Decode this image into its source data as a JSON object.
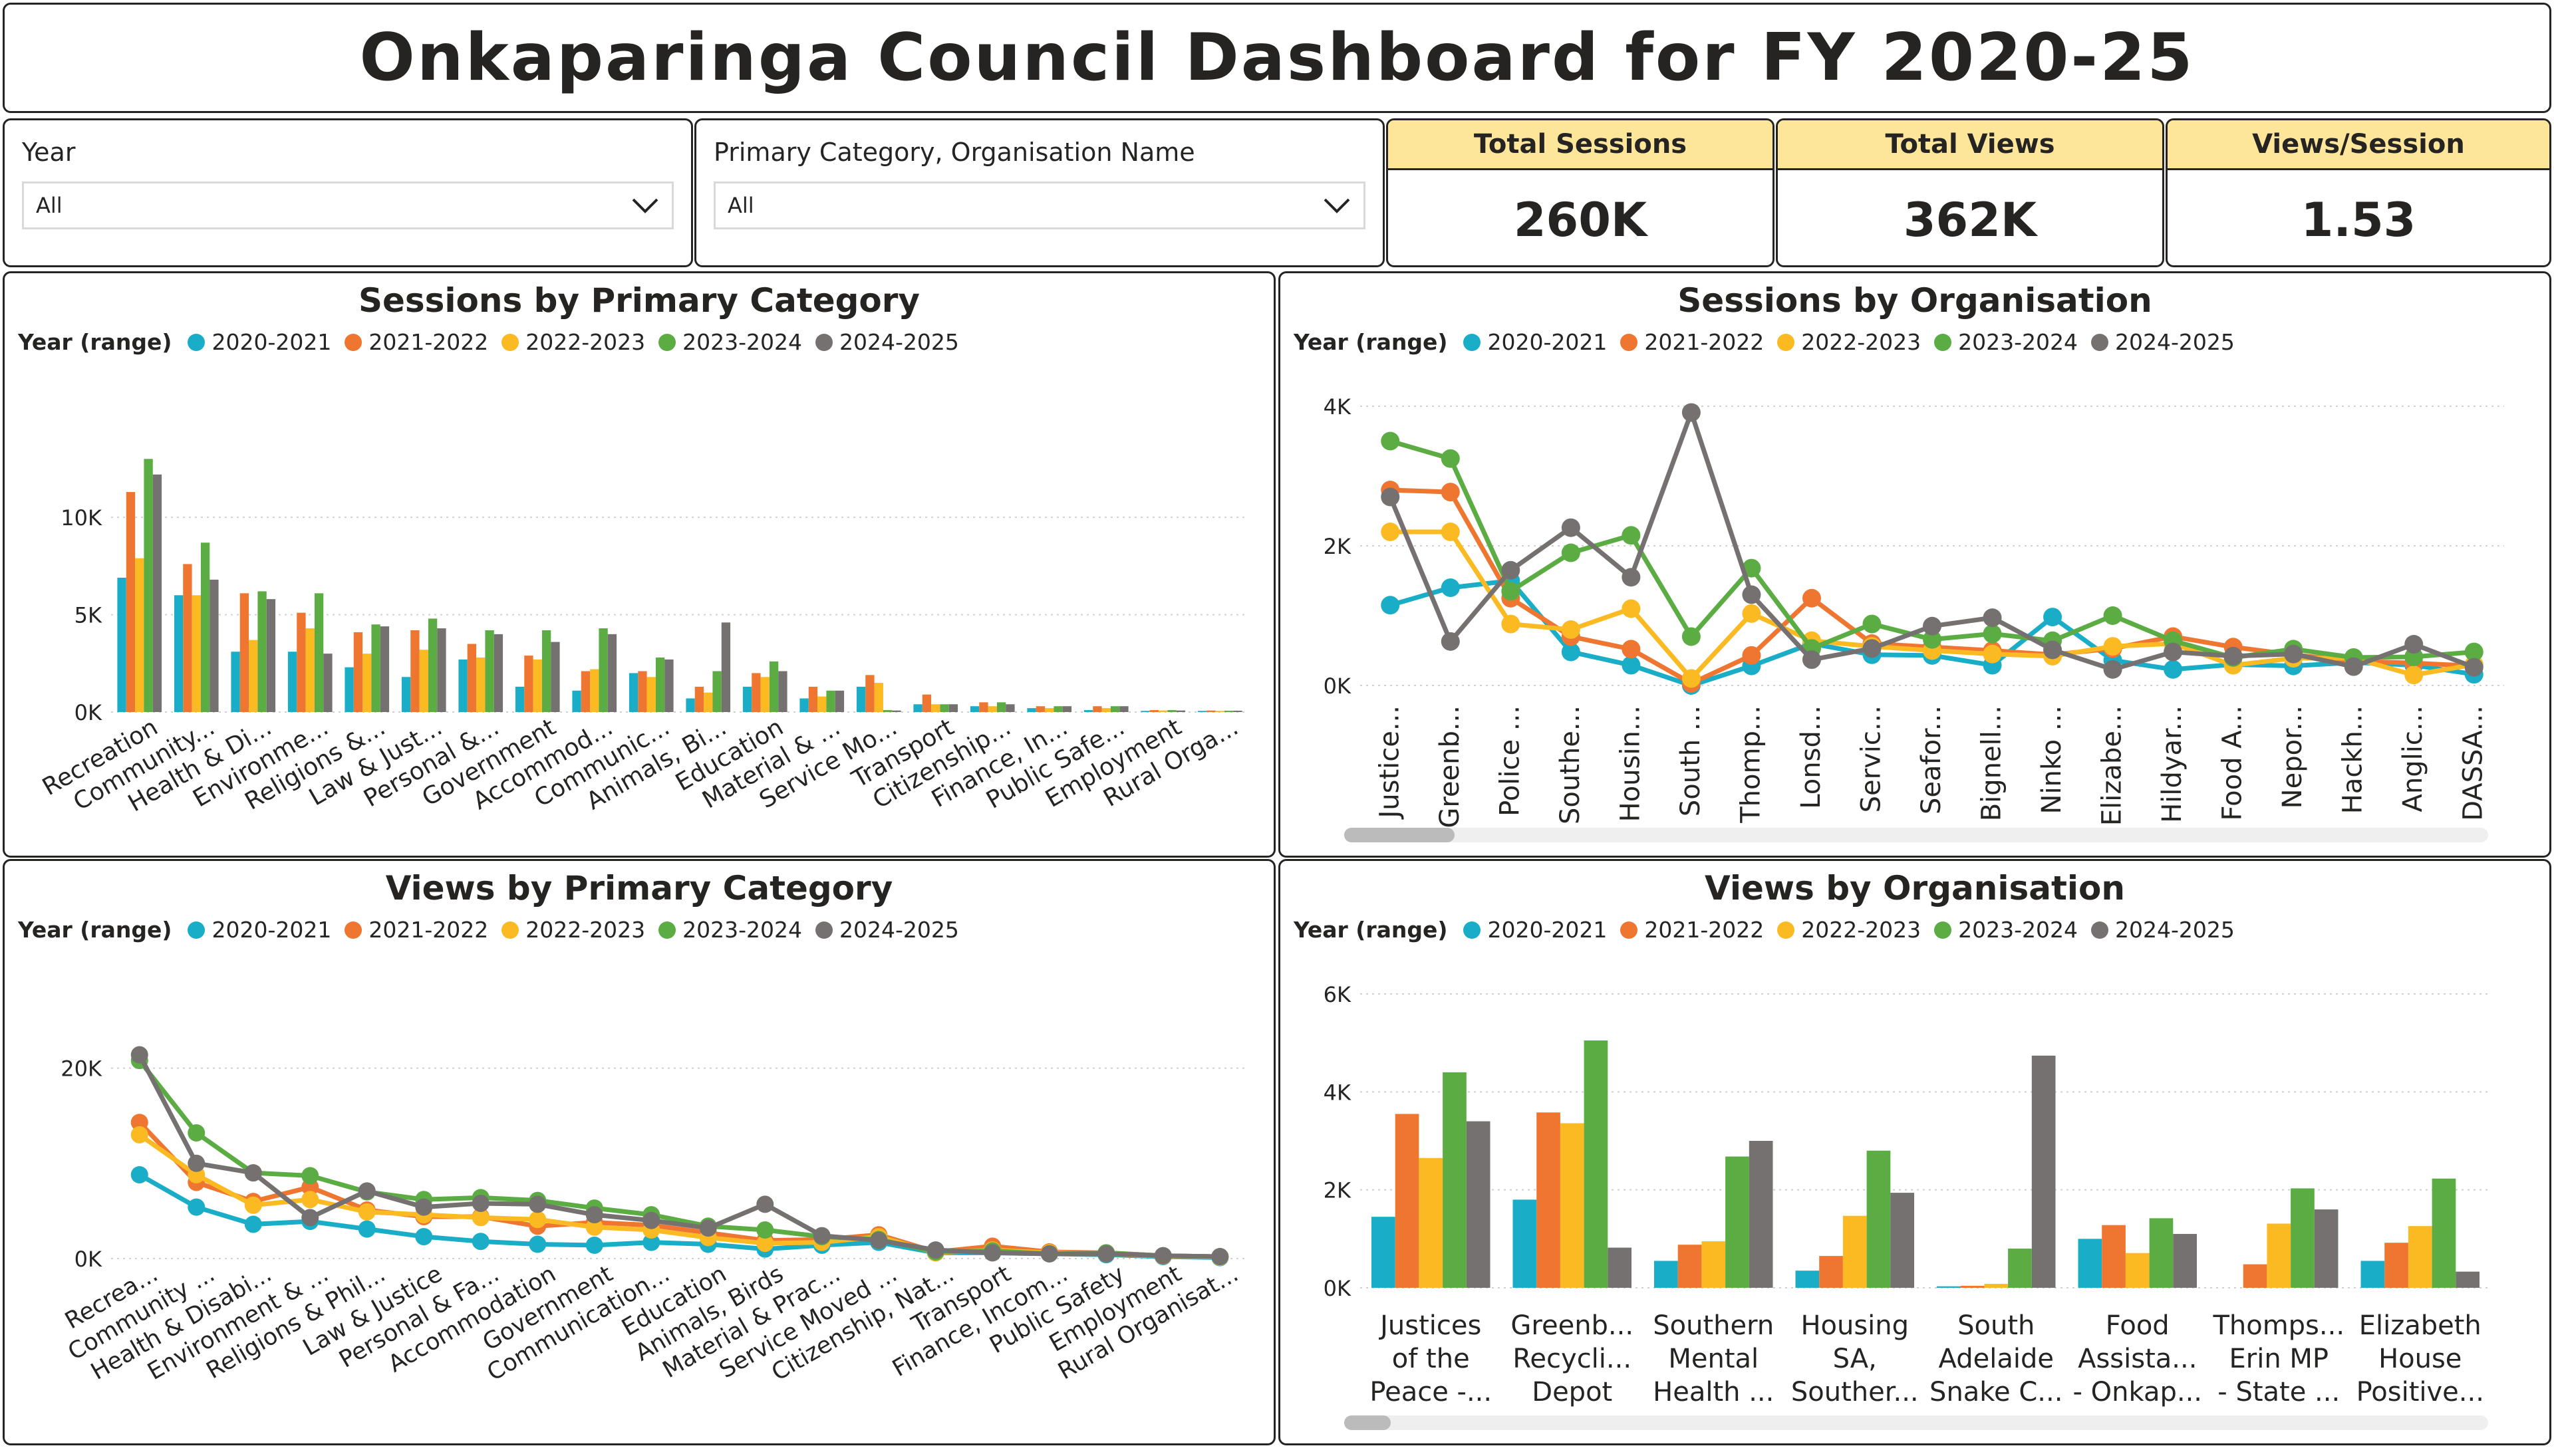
{
  "dashboard_title": "Onkaparinga Council Dashboard for FY 2020-25",
  "slicers": {
    "year": {
      "label": "Year",
      "value": "All"
    },
    "category": {
      "label": "Primary Category, Organisation Name",
      "value": "All"
    }
  },
  "kpis": {
    "sessions": {
      "label": "Total Sessions",
      "value": "260K"
    },
    "views": {
      "label": "Total Views",
      "value": "362K"
    },
    "views_per_session": {
      "label": "Views/Session",
      "value": "1.53"
    }
  },
  "colors": {
    "kpi_header": "#fde699",
    "border": "#252423"
  },
  "legend": {
    "title": "Year (range)",
    "series": [
      "2020-2021",
      "2021-2022",
      "2022-2023",
      "2023-2024",
      "2024-2025"
    ],
    "colors": [
      "#1aadc8",
      "#ee7630",
      "#fcba22",
      "#5aac43",
      "#767171"
    ]
  },
  "chart_data": [
    {
      "id": "sessions_by_category",
      "type": "bar",
      "title": "Sessions by Primary Category",
      "ylim": [
        0,
        14000
      ],
      "yticks": [
        {
          "v": 0,
          "label": "0K"
        },
        {
          "v": 5000,
          "label": "5K"
        },
        {
          "v": 10000,
          "label": "10K"
        }
      ],
      "categories": [
        "Recreation",
        "Community...",
        "Health & Di...",
        "Environme...",
        "Religions &...",
        "Law & Just...",
        "Personal &...",
        "Government",
        "Accommod...",
        "Communic...",
        "Animals, Bi...",
        "Education",
        "Material & ...",
        "Service Mo...",
        "Transport",
        "Citizenship...",
        "Finance, In...",
        "Public Safe...",
        "Employment",
        "Rural Orga..."
      ],
      "series": [
        {
          "name": "2020-2021",
          "values": [
            6900,
            6000,
            3100,
            3100,
            2300,
            1800,
            2700,
            1300,
            1100,
            2000,
            700,
            1300,
            700,
            1300,
            400,
            300,
            200,
            100,
            60,
            60
          ]
        },
        {
          "name": "2021-2022",
          "values": [
            11300,
            7600,
            6100,
            5100,
            4100,
            4200,
            3500,
            2900,
            2100,
            2100,
            1300,
            2000,
            1300,
            1900,
            900,
            500,
            300,
            300,
            100,
            80
          ]
        },
        {
          "name": "2022-2023",
          "values": [
            7900,
            6000,
            3700,
            4300,
            3000,
            3200,
            2800,
            2700,
            2200,
            1800,
            1000,
            1800,
            800,
            1500,
            400,
            300,
            200,
            200,
            80,
            60
          ]
        },
        {
          "name": "2023-2024",
          "values": [
            13000,
            8700,
            6200,
            6100,
            4500,
            4800,
            4200,
            4200,
            4300,
            2800,
            2100,
            2600,
            1100,
            100,
            400,
            500,
            300,
            300,
            100,
            70
          ]
        },
        {
          "name": "2024-2025",
          "values": [
            12200,
            6800,
            5800,
            3000,
            4400,
            4300,
            4000,
            3600,
            4000,
            2700,
            4600,
            2100,
            1100,
            80,
            400,
            400,
            300,
            300,
            80,
            70
          ]
        }
      ]
    },
    {
      "id": "sessions_by_org",
      "type": "line",
      "title": "Sessions by Organisation",
      "ylim": [
        0,
        4000
      ],
      "yticks": [
        {
          "v": 0,
          "label": "0K"
        },
        {
          "v": 2000,
          "label": "2K"
        },
        {
          "v": 4000,
          "label": "4K"
        }
      ],
      "categories": [
        "Justice...",
        "Greenb...",
        "Police ...",
        "Southe...",
        "Housin...",
        "South ...",
        "Thomp...",
        "Lonsd...",
        "Servic...",
        "Seafor...",
        "Bignell...",
        "Ninko ...",
        "Elizabe...",
        "Hildyar...",
        "Food A...",
        "Nepor...",
        "Hackh...",
        "Anglic...",
        "DASSA..."
      ],
      "series": [
        {
          "name": "2020-2021",
          "values": [
            1150,
            1400,
            1500,
            480,
            290,
            0,
            280,
            600,
            440,
            430,
            290,
            980,
            360,
            230,
            300,
            280,
            330,
            290,
            160
          ]
        },
        {
          "name": "2021-2022",
          "values": [
            2800,
            2770,
            1250,
            700,
            520,
            30,
            430,
            1250,
            600,
            550,
            500,
            440,
            530,
            700,
            550,
            440,
            350,
            320,
            280
          ]
        },
        {
          "name": "2022-2023",
          "values": [
            2200,
            2200,
            880,
            800,
            1100,
            100,
            1030,
            640,
            560,
            500,
            450,
            420,
            560,
            600,
            290,
            390,
            390,
            150,
            300
          ]
        },
        {
          "name": "2023-2024",
          "values": [
            3500,
            3250,
            1350,
            1900,
            2150,
            700,
            1680,
            530,
            880,
            660,
            740,
            640,
            1000,
            640,
            400,
            520,
            400,
            410,
            480
          ]
        },
        {
          "name": "2024-2025",
          "values": [
            2700,
            630,
            1650,
            2260,
            1550,
            3910,
            1300,
            370,
            530,
            850,
            970,
            510,
            230,
            480,
            420,
            450,
            270,
            590,
            260
          ]
        }
      ]
    },
    {
      "id": "views_by_category",
      "type": "line",
      "title": "Views by Primary Category",
      "ylim": [
        0,
        25000
      ],
      "yticks": [
        {
          "v": 0,
          "label": "0K"
        },
        {
          "v": 20000,
          "label": "20K"
        }
      ],
      "categories": [
        "Recrea...",
        "Community ...",
        "Health & Disabi...",
        "Environment & ...",
        "Religions & Phil...",
        "Law & Justice",
        "Personal & Fa...",
        "Accommodation",
        "Government",
        "Communication...",
        "Education",
        "Animals, Birds",
        "Material & Prac...",
        "Service Moved ...",
        "Citizenship, Nat...",
        "Transport",
        "Finance, Incom...",
        "Public Safety",
        "Employment",
        "Rural Organisat..."
      ],
      "series": [
        {
          "name": "2020-2021",
          "values": [
            8800,
            5400,
            3600,
            3900,
            3100,
            2300,
            1800,
            1500,
            1400,
            1700,
            1500,
            1000,
            1400,
            1700,
            600,
            600,
            500,
            400,
            200,
            100
          ]
        },
        {
          "name": "2021-2022",
          "values": [
            14300,
            8000,
            6000,
            7500,
            5100,
            4400,
            4400,
            3400,
            3800,
            3500,
            2700,
            1900,
            2000,
            2500,
            700,
            1300,
            700,
            600,
            300,
            200
          ]
        },
        {
          "name": "2022-2023",
          "values": [
            13000,
            8800,
            5600,
            6200,
            4900,
            4600,
            4300,
            4100,
            3300,
            3000,
            2200,
            1600,
            1700,
            2300,
            600,
            900,
            600,
            500,
            250,
            150
          ]
        },
        {
          "name": "2023-2024",
          "values": [
            20800,
            13200,
            9000,
            8700,
            7000,
            6200,
            6400,
            6100,
            5300,
            4600,
            3400,
            3000,
            2300,
            2000,
            700,
            800,
            500,
            600,
            300,
            200
          ]
        },
        {
          "name": "2024-2025",
          "values": [
            21400,
            10000,
            9000,
            4300,
            7100,
            5400,
            5800,
            5700,
            4600,
            4000,
            3200,
            5700,
            2400,
            1900,
            900,
            600,
            500,
            500,
            300,
            200
          ]
        }
      ]
    },
    {
      "id": "views_by_org",
      "type": "bar",
      "title": "Views by Organisation",
      "ylim": [
        0,
        6000
      ],
      "yticks": [
        {
          "v": 0,
          "label": "0K"
        },
        {
          "v": 2000,
          "label": "2K"
        },
        {
          "v": 4000,
          "label": "4K"
        },
        {
          "v": 6000,
          "label": "6K"
        }
      ],
      "categories": [
        [
          "Justices",
          "of the",
          "Peace -..."
        ],
        [
          "Greenb...",
          "Recycli...",
          "Depot"
        ],
        [
          "Southern",
          "Mental",
          "Health ..."
        ],
        [
          "Housing",
          "SA,",
          "Souther..."
        ],
        [
          "South",
          "Adelaide",
          "Snake C..."
        ],
        [
          "Food",
          "Assista...",
          "- Onkap..."
        ],
        [
          "Thomps...",
          "Erin MP",
          "- State ..."
        ],
        [
          "Elizabeth",
          "House",
          "Positive..."
        ]
      ],
      "series": [
        {
          "name": "2020-2021",
          "values": [
            1450,
            1800,
            550,
            350,
            30,
            1000,
            0,
            550
          ]
        },
        {
          "name": "2021-2022",
          "values": [
            3550,
            3580,
            880,
            650,
            40,
            1280,
            480,
            920
          ]
        },
        {
          "name": "2022-2023",
          "values": [
            2650,
            3360,
            950,
            1470,
            80,
            710,
            1310,
            1260
          ]
        },
        {
          "name": "2023-2024",
          "values": [
            4400,
            5050,
            2680,
            2800,
            800,
            1420,
            2030,
            2230
          ]
        },
        {
          "name": "2024-2025",
          "values": [
            3400,
            820,
            3000,
            1940,
            4740,
            1100,
            1600,
            330
          ]
        }
      ]
    }
  ]
}
